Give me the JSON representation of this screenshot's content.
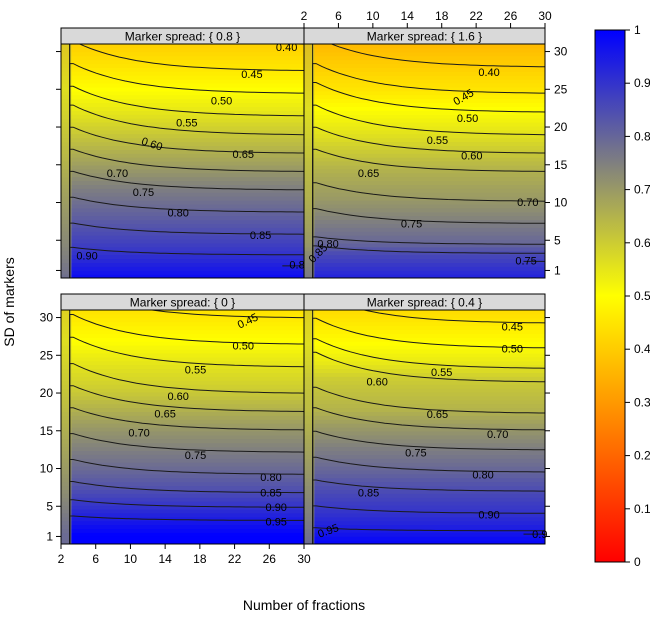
{
  "chart_data": {
    "type": "heatmap",
    "layout": "2x2 lattice contour plot with shared color key",
    "xlabel": "Number of fractions",
    "ylabel": "SD of markers",
    "xlim": [
      2,
      30
    ],
    "ylim": [
      0,
      31
    ],
    "x_ticks": [
      2,
      6,
      10,
      14,
      18,
      22,
      26,
      30
    ],
    "y_ticks": [
      1,
      5,
      10,
      15,
      20,
      25,
      30
    ],
    "colorbar": {
      "range": [
        0,
        1
      ],
      "ticks": [
        "0",
        "0.1",
        "0.2",
        "0.3",
        "0.4",
        "0.5",
        "0.6",
        "0.7",
        "0.8",
        "0.9",
        "1"
      ],
      "colors": [
        "#ff0000",
        "#ffff00",
        "#0000ff"
      ]
    },
    "panels": [
      {
        "strip": "Marker spread: { 0.8 }",
        "position": "top-left",
        "contours": [
          {
            "level": "0.40",
            "v": 0.4,
            "base": 31.5,
            "drop": 4,
            "lx": 28,
            "ly": 30.6,
            "angle": 0
          },
          {
            "level": "0.45",
            "v": 0.45,
            "base": 28,
            "drop": 4,
            "lx": 24,
            "ly": 27,
            "angle": 0
          },
          {
            "level": "0.50",
            "v": 0.5,
            "base": 25,
            "drop": 4,
            "lx": 20.5,
            "ly": 23.5,
            "angle": 0
          },
          {
            "level": "0.55",
            "v": 0.55,
            "base": 22,
            "drop": 4,
            "lx": 16.5,
            "ly": 20.6,
            "angle": 0
          },
          {
            "level": "0.60",
            "v": 0.6,
            "base": 19.5,
            "drop": 4,
            "lx": 12.5,
            "ly": 17.8,
            "angle": 18
          },
          {
            "level": "0.65",
            "v": 0.65,
            "base": 17,
            "drop": 3.5,
            "lx": 23,
            "ly": 16.4,
            "angle": 0
          },
          {
            "level": "0.70",
            "v": 0.7,
            "base": 14.5,
            "drop": 3,
            "lx": 8.5,
            "ly": 13.9,
            "angle": 0
          },
          {
            "level": "0.75",
            "v": 0.75,
            "base": 12,
            "drop": 2.5,
            "lx": 11.5,
            "ly": 11.4,
            "angle": 0
          },
          {
            "level": "0.80",
            "v": 0.8,
            "base": 9,
            "drop": 2,
            "lx": 15.5,
            "ly": 8.7,
            "angle": 0
          },
          {
            "level": "0.85",
            "v": 0.85,
            "base": 6,
            "drop": 1.5,
            "lx": 25,
            "ly": 5.7,
            "angle": 0
          },
          {
            "level": "0.90",
            "v": 0.9,
            "base": 3.2,
            "drop": 1,
            "lx": 5,
            "ly": 3.0,
            "angle": 0
          },
          {
            "level": "0.8",
            "v": 0.8,
            "base": 1.6,
            "drop": 0,
            "lx": 29.2,
            "ly": 1.8,
            "angle": 0,
            "partial": true
          }
        ]
      },
      {
        "strip": "Marker spread: { 1.6 }",
        "position": "top-right",
        "contours": [
          {
            "level": "0.40",
            "v": 0.4,
            "base": 28.5,
            "drop": 4,
            "lx": 23.5,
            "ly": 27.3,
            "angle": 0
          },
          {
            "level": "0.45",
            "v": 0.45,
            "base": 25,
            "drop": 4,
            "lx": 20.5,
            "ly": 24,
            "angle": -30
          },
          {
            "level": "0.50",
            "v": 0.5,
            "base": 22.5,
            "drop": 4,
            "lx": 21,
            "ly": 21.2,
            "angle": 0
          },
          {
            "level": "0.55",
            "v": 0.55,
            "base": 19.5,
            "drop": 4,
            "lx": 17.5,
            "ly": 18.3,
            "angle": 0
          },
          {
            "level": "0.60",
            "v": 0.6,
            "base": 17,
            "drop": 3.5,
            "lx": 21.5,
            "ly": 16.2,
            "angle": 0
          },
          {
            "level": "0.65",
            "v": 0.65,
            "base": 14.5,
            "drop": 3,
            "lx": 9.5,
            "ly": 13.9,
            "angle": 0
          },
          {
            "level": "0.70",
            "v": 0.7,
            "base": 10.5,
            "drop": 2.5,
            "lx": 28,
            "ly": 10.1,
            "angle": 0
          },
          {
            "level": "0.75",
            "v": 0.75,
            "base": 7.5,
            "drop": 2,
            "lx": 14.5,
            "ly": 7.2,
            "angle": 0
          },
          {
            "level": "0.80",
            "v": 0.8,
            "base": 4.6,
            "drop": 1,
            "lx": 4.8,
            "ly": 4.6,
            "angle": 0
          },
          {
            "level": "0.85",
            "v": 0.85,
            "base": 3.4,
            "drop": 1,
            "lx": 3.6,
            "ly": 3.3,
            "angle": -45
          },
          {
            "level": "0.75",
            "v": 0.75,
            "base": 2.2,
            "drop": 0,
            "lx": 27.8,
            "ly": 2.3,
            "angle": 0,
            "partial": true
          }
        ]
      },
      {
        "strip": "Marker spread: { 0 }",
        "position": "bottom-left",
        "contours": [
          {
            "level": "0.45",
            "v": 0.45,
            "base": 30.5,
            "drop": 4,
            "lx": 23.5,
            "ly": 29.6,
            "angle": -25
          },
          {
            "level": "0.50",
            "v": 0.5,
            "base": 27,
            "drop": 4,
            "lx": 23,
            "ly": 26.3,
            "angle": 0
          },
          {
            "level": "0.55",
            "v": 0.55,
            "base": 24,
            "drop": 4,
            "lx": 17.5,
            "ly": 23.1,
            "angle": 0
          },
          {
            "level": "0.60",
            "v": 0.6,
            "base": 20.5,
            "drop": 4,
            "lx": 15.5,
            "ly": 19.6,
            "angle": 0
          },
          {
            "level": "0.65",
            "v": 0.65,
            "base": 18,
            "drop": 3.5,
            "lx": 14,
            "ly": 17.3,
            "angle": 0
          },
          {
            "level": "0.70",
            "v": 0.7,
            "base": 15.5,
            "drop": 3,
            "lx": 11,
            "ly": 14.8,
            "angle": 0
          },
          {
            "level": "0.75",
            "v": 0.75,
            "base": 12.5,
            "drop": 2.5,
            "lx": 17.5,
            "ly": 11.8,
            "angle": 0
          },
          {
            "level": "0.80",
            "v": 0.8,
            "base": 9.5,
            "drop": 2,
            "lx": 26.2,
            "ly": 8.9,
            "angle": 0
          },
          {
            "level": "0.85",
            "v": 0.85,
            "base": 7.0,
            "drop": 1.5,
            "lx": 26.2,
            "ly": 6.8,
            "angle": 0
          },
          {
            "level": "0.90",
            "v": 0.9,
            "base": 5.0,
            "drop": 1,
            "lx": 26.8,
            "ly": 4.9,
            "angle": 0
          },
          {
            "level": "0.95",
            "v": 0.95,
            "base": 3.2,
            "drop": 0.6,
            "lx": 26.8,
            "ly": 3.0,
            "angle": 0
          }
        ]
      },
      {
        "strip": "Marker spread: { 0.4 }",
        "position": "bottom-right",
        "contours": [
          {
            "level": "0.45",
            "v": 0.45,
            "base": 29.8,
            "drop": 4,
            "lx": 26.2,
            "ly": 28.8,
            "angle": 0
          },
          {
            "level": "0.50",
            "v": 0.5,
            "base": 26.5,
            "drop": 4,
            "lx": 26.2,
            "ly": 25.9,
            "angle": 0
          },
          {
            "level": "0.55",
            "v": 0.55,
            "base": 23.8,
            "drop": 4,
            "lx": 18,
            "ly": 22.8,
            "angle": 0
          },
          {
            "level": "0.60",
            "v": 0.6,
            "base": 22,
            "drop": 4,
            "lx": 10.5,
            "ly": 21.5,
            "angle": 0
          },
          {
            "level": "0.65",
            "v": 0.65,
            "base": 17.8,
            "drop": 3.5,
            "lx": 17.5,
            "ly": 17.2,
            "angle": 0
          },
          {
            "level": "0.70",
            "v": 0.7,
            "base": 15.5,
            "drop": 3,
            "lx": 24.5,
            "ly": 14.6,
            "angle": 0
          },
          {
            "level": "0.75",
            "v": 0.75,
            "base": 12.8,
            "drop": 2.5,
            "lx": 15,
            "ly": 12.1,
            "angle": 0
          },
          {
            "level": "0.80",
            "v": 0.8,
            "base": 9.8,
            "drop": 2,
            "lx": 22.8,
            "ly": 9.2,
            "angle": 0
          },
          {
            "level": "0.85",
            "v": 0.85,
            "base": 7.2,
            "drop": 1.5,
            "lx": 9.5,
            "ly": 6.8,
            "angle": 0
          },
          {
            "level": "0.90",
            "v": 0.9,
            "base": 4.2,
            "drop": 1,
            "lx": 23.5,
            "ly": 3.9,
            "angle": 0
          },
          {
            "level": "0.95",
            "v": 0.95,
            "base": 1.8,
            "drop": 0.4,
            "lx": 4.8,
            "ly": 1.8,
            "angle": -20
          },
          {
            "level": "0.9",
            "v": 0.9,
            "base": 1.3,
            "drop": 0,
            "lx": 29.4,
            "ly": 1.3,
            "angle": 0,
            "partial": true
          }
        ]
      }
    ]
  }
}
